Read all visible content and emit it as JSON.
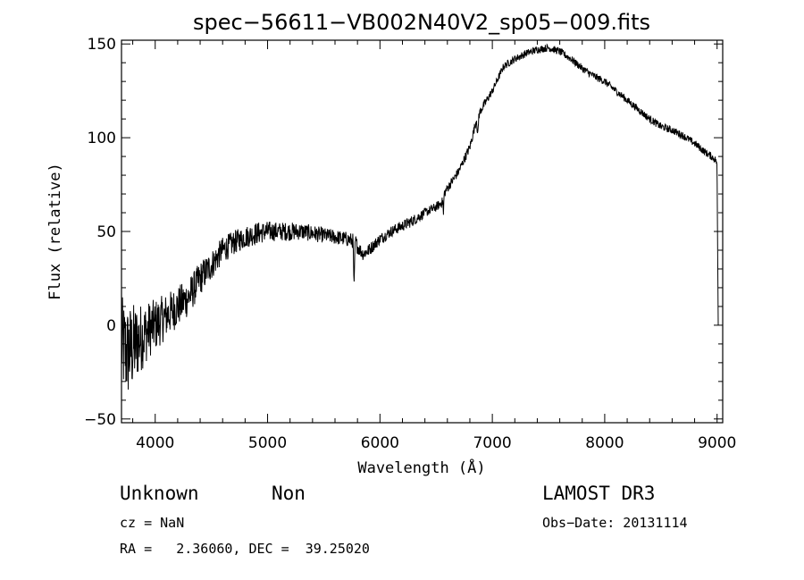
{
  "chart_data": {
    "type": "line",
    "title": "spec−56611−VB002N40V2_sp05−009.fits",
    "xlabel": "Wavelength (Å)",
    "ylabel": "Flux (relative)",
    "xlim": [
      3700,
      9050
    ],
    "ylim": [
      -52,
      152
    ],
    "xticks": [
      4000,
      5000,
      6000,
      7000,
      8000,
      9000
    ],
    "yticks": [
      -50,
      0,
      50,
      100,
      150
    ],
    "xtick_labels": [
      "4000",
      "5000",
      "6000",
      "7000",
      "8000",
      "9000"
    ],
    "ytick_labels": [
      "−50",
      "0",
      "50",
      "100",
      "150"
    ],
    "grid": false,
    "series": [
      {
        "name": "spectrum",
        "x": [
          3700,
          3750,
          3800,
          3850,
          3900,
          3950,
          4000,
          4100,
          4200,
          4300,
          4400,
          4500,
          4600,
          4700,
          4800,
          4900,
          5000,
          5100,
          5200,
          5300,
          5400,
          5500,
          5600,
          5700,
          5760,
          5770,
          5780,
          5800,
          5850,
          5900,
          6000,
          6100,
          6200,
          6300,
          6400,
          6500,
          6560,
          6565,
          6570,
          6600,
          6700,
          6800,
          6860,
          6870,
          6880,
          6900,
          7000,
          7100,
          7200,
          7300,
          7400,
          7500,
          7600,
          7700,
          7800,
          7900,
          8000,
          8100,
          8200,
          8300,
          8400,
          8500,
          8600,
          8700,
          8800,
          8900,
          8950,
          8990,
          9000,
          9005,
          9010
        ],
        "y": [
          -10,
          -15,
          -12,
          -8,
          -5,
          -2,
          0,
          5,
          10,
          15,
          25,
          32,
          40,
          44,
          47,
          49,
          50,
          50,
          50,
          50,
          49,
          48,
          47,
          46,
          45,
          20,
          45,
          42,
          38,
          40,
          46,
          50,
          53,
          56,
          60,
          63,
          66,
          58,
          70,
          73,
          82,
          95,
          110,
          100,
          112,
          115,
          125,
          138,
          142,
          145,
          147,
          148,
          146,
          142,
          137,
          133,
          130,
          125,
          120,
          115,
          110,
          106,
          104,
          101,
          97,
          92,
          90,
          88,
          85,
          40,
          0
        ],
        "noise_amplitude": [
          26,
          26,
          24,
          20,
          17,
          15,
          14,
          12,
          11,
          10,
          9,
          8,
          7,
          6.5,
          6,
          6,
          5.5,
          5,
          5,
          4.5,
          4.5,
          4,
          4,
          4,
          4,
          4,
          4,
          4,
          3.5,
          3.5,
          3,
          3,
          3,
          3,
          2.5,
          2.5,
          2.5,
          2.5,
          2.5,
          2.5,
          2.5,
          2.5,
          2.5,
          2.5,
          2.5,
          2.5,
          2,
          2,
          2,
          2,
          2,
          2,
          2,
          2,
          2,
          2,
          2,
          2,
          2,
          2,
          2,
          2,
          2,
          2,
          2,
          2,
          2,
          2,
          0,
          0,
          0
        ]
      }
    ]
  },
  "info": {
    "object_class": "Unknown",
    "object_subclass": "Non",
    "survey": "LAMOST DR3",
    "cz_text": "cz = NaN",
    "obs_date_text": "Obs−Date: 20131114",
    "radec_text": "RA =   2.36060, DEC =  39.25020"
  }
}
